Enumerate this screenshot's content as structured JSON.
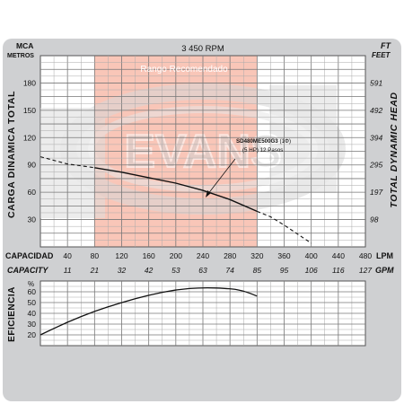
{
  "chart_data": [
    {
      "type": "line",
      "title": "3 450 RPM",
      "left_axis": {
        "unit_top": "MCA",
        "unit_bottom": "METROS",
        "label": "CARGA DINAMICA TOTAL",
        "ticks": [
          30,
          60,
          90,
          120,
          150,
          180
        ],
        "range": [
          0,
          210
        ]
      },
      "right_axis": {
        "unit_top": "FT",
        "unit_bottom": "FEET",
        "label": "TOTAL DYNAMIC HEAD",
        "ticks": [
          "98",
          "197",
          "295",
          "394",
          "492",
          "591"
        ]
      },
      "x_axis": {
        "label": "CAPACIDAD",
        "unit": "LPM",
        "ticks": [
          40,
          80,
          120,
          160,
          200,
          240,
          280,
          320,
          360,
          400,
          440,
          480
        ],
        "range": [
          0,
          480
        ]
      },
      "x_axis_secondary": {
        "label": "CAPACITY",
        "unit": "GPM",
        "ticks": [
          "11",
          "21",
          "32",
          "42",
          "53",
          "63",
          "74",
          "85",
          "95",
          "106",
          "116",
          "127"
        ]
      },
      "recommended_range": {
        "label": "Rango Recomendado",
        "from": 80,
        "to": 320
      },
      "watermark": "EVANS",
      "annotation": {
        "line1": "SD480ME500G3",
        "line1_suffix": "(1Φ)",
        "line2": "(5 HP)  12 Pasos"
      },
      "series": [
        {
          "style": "solid",
          "points": [
            [
              80,
              87
            ],
            [
              120,
              82
            ],
            [
              160,
              76
            ],
            [
              200,
              70
            ],
            [
              240,
              62
            ],
            [
              280,
              52
            ],
            [
              320,
              39
            ]
          ]
        },
        {
          "style": "dashed",
          "points": [
            [
              0,
              99
            ],
            [
              20,
              95
            ],
            [
              40,
              91
            ],
            [
              60,
              89
            ],
            [
              80,
              87
            ]
          ]
        },
        {
          "style": "dashed",
          "points": [
            [
              320,
              39
            ],
            [
              340,
              33
            ],
            [
              360,
              24
            ],
            [
              380,
              14
            ],
            [
              400,
              4
            ]
          ]
        }
      ]
    },
    {
      "type": "line",
      "y_axis": {
        "label": "EFICIENCIA",
        "unit": "%",
        "ticks": [
          20,
          30,
          40,
          50,
          60
        ],
        "range": [
          10,
          70
        ]
      },
      "x_axis": {
        "range": [
          0,
          480
        ]
      },
      "series": [
        {
          "style": "solid",
          "points": [
            [
              0,
              20
            ],
            [
              40,
              32
            ],
            [
              80,
              42
            ],
            [
              120,
              50
            ],
            [
              160,
              57
            ],
            [
              200,
              62
            ],
            [
              240,
              64
            ],
            [
              280,
              63
            ],
            [
              300,
              61
            ],
            [
              320,
              56
            ]
          ]
        }
      ]
    }
  ]
}
